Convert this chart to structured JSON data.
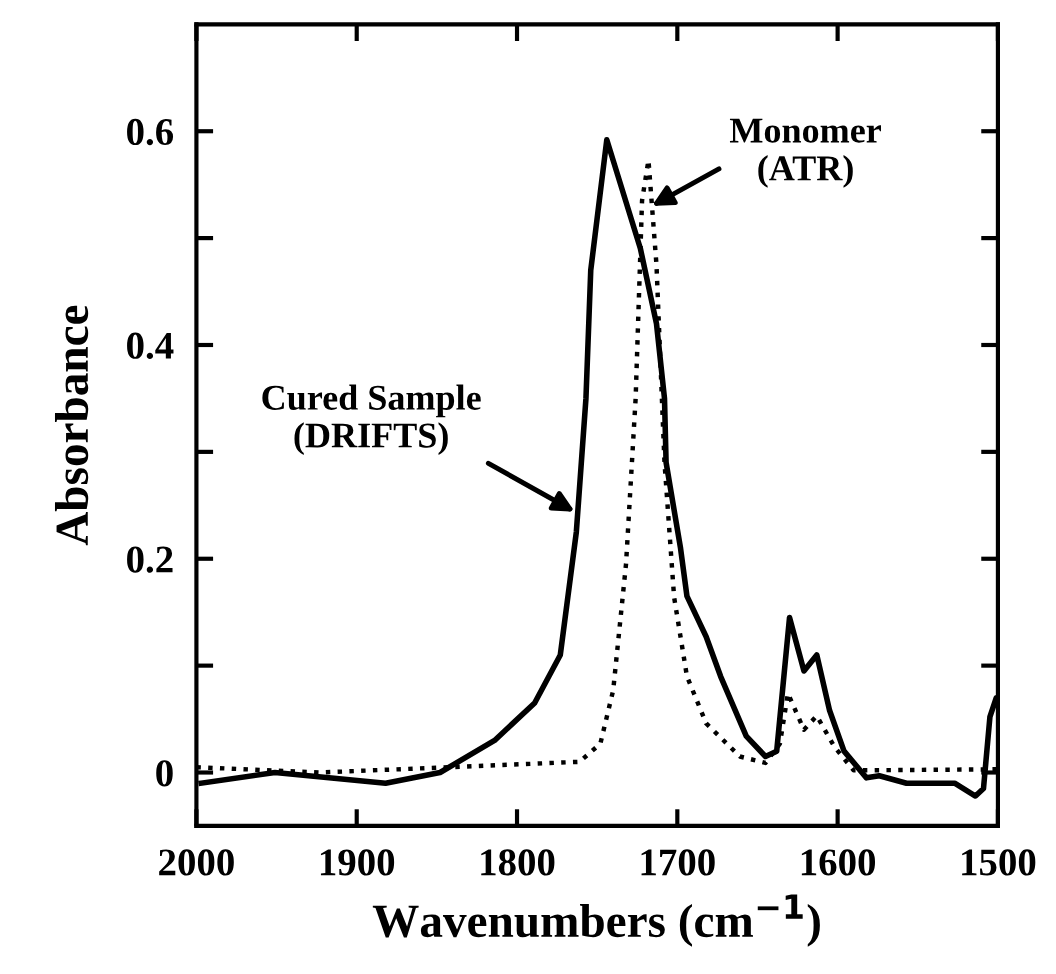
{
  "chart_data": {
    "type": "line",
    "xlabel": "Wavenumbers (cm$^{−1}$)",
    "ylabel": "Absorbance",
    "xlim": [
      2000,
      1500
    ],
    "xticks": [
      2000,
      1900,
      1800,
      1700,
      1600,
      1500
    ],
    "ylim": [
      -0.05,
      0.7
    ],
    "yticks": [
      0,
      {
        "value": 0.1,
        "label": null
      },
      {
        "value": 0.2,
        "label": "0.2"
      },
      {
        "value": 0.3,
        "label": null
      },
      {
        "value": 0.4,
        "label": "0.4"
      },
      {
        "value": 0.5,
        "label": null
      },
      {
        "value": 0.6,
        "label": "0.6"
      }
    ],
    "grid": false,
    "legend": false,
    "series": [
      {
        "color": "#000000",
        "line_style": "solid",
        "x": [
          1997,
          1951,
          1882,
          1848,
          1814,
          1789,
          1773,
          1763,
          1757,
          1754,
          1744,
          1723,
          1713,
          1708,
          1707,
          1698,
          1694,
          1682,
          1673,
          1657,
          1645,
          1638,
          1630,
          1621,
          1613,
          1605,
          1596,
          1582,
          1574,
          1557,
          1527,
          1514,
          1509,
          1505,
          1501,
          1500
        ],
        "values": [
          -0.01,
          0.0,
          -0.01,
          0.0,
          0.03,
          0.065,
          0.11,
          0.225,
          0.35,
          0.47,
          0.592,
          0.49,
          0.42,
          0.35,
          0.29,
          0.21,
          0.165,
          0.127,
          0.09,
          0.034,
          0.015,
          0.02,
          0.145,
          0.095,
          0.11,
          0.058,
          0.02,
          -0.005,
          -0.003,
          -0.01,
          -0.01,
          -0.022,
          -0.015,
          0.052,
          0.07,
          0.07
        ]
      },
      {
        "color": "#000000",
        "line_style": "dotted",
        "x": [
          2000,
          1923,
          1761,
          1748,
          1740,
          1732,
          1726,
          1722,
          1718,
          1713,
          1708,
          1702,
          1694,
          1682,
          1661,
          1645,
          1636,
          1631,
          1621,
          1613,
          1602,
          1590,
          1500
        ],
        "values": [
          0.005,
          0.0,
          0.01,
          0.027,
          0.077,
          0.195,
          0.35,
          0.535,
          0.573,
          0.475,
          0.29,
          0.164,
          0.09,
          0.046,
          0.015,
          0.009,
          0.027,
          0.074,
          0.04,
          0.053,
          0.024,
          0.002,
          0.003
        ]
      }
    ],
    "annotations": [
      {
        "text": "Cured Sample\n(DRIFTS)",
        "x": 1764,
        "y": 0.244
      },
      {
        "text": "Monomer\n(ATR)",
        "x": 1716,
        "y": 0.53
      }
    ]
  }
}
